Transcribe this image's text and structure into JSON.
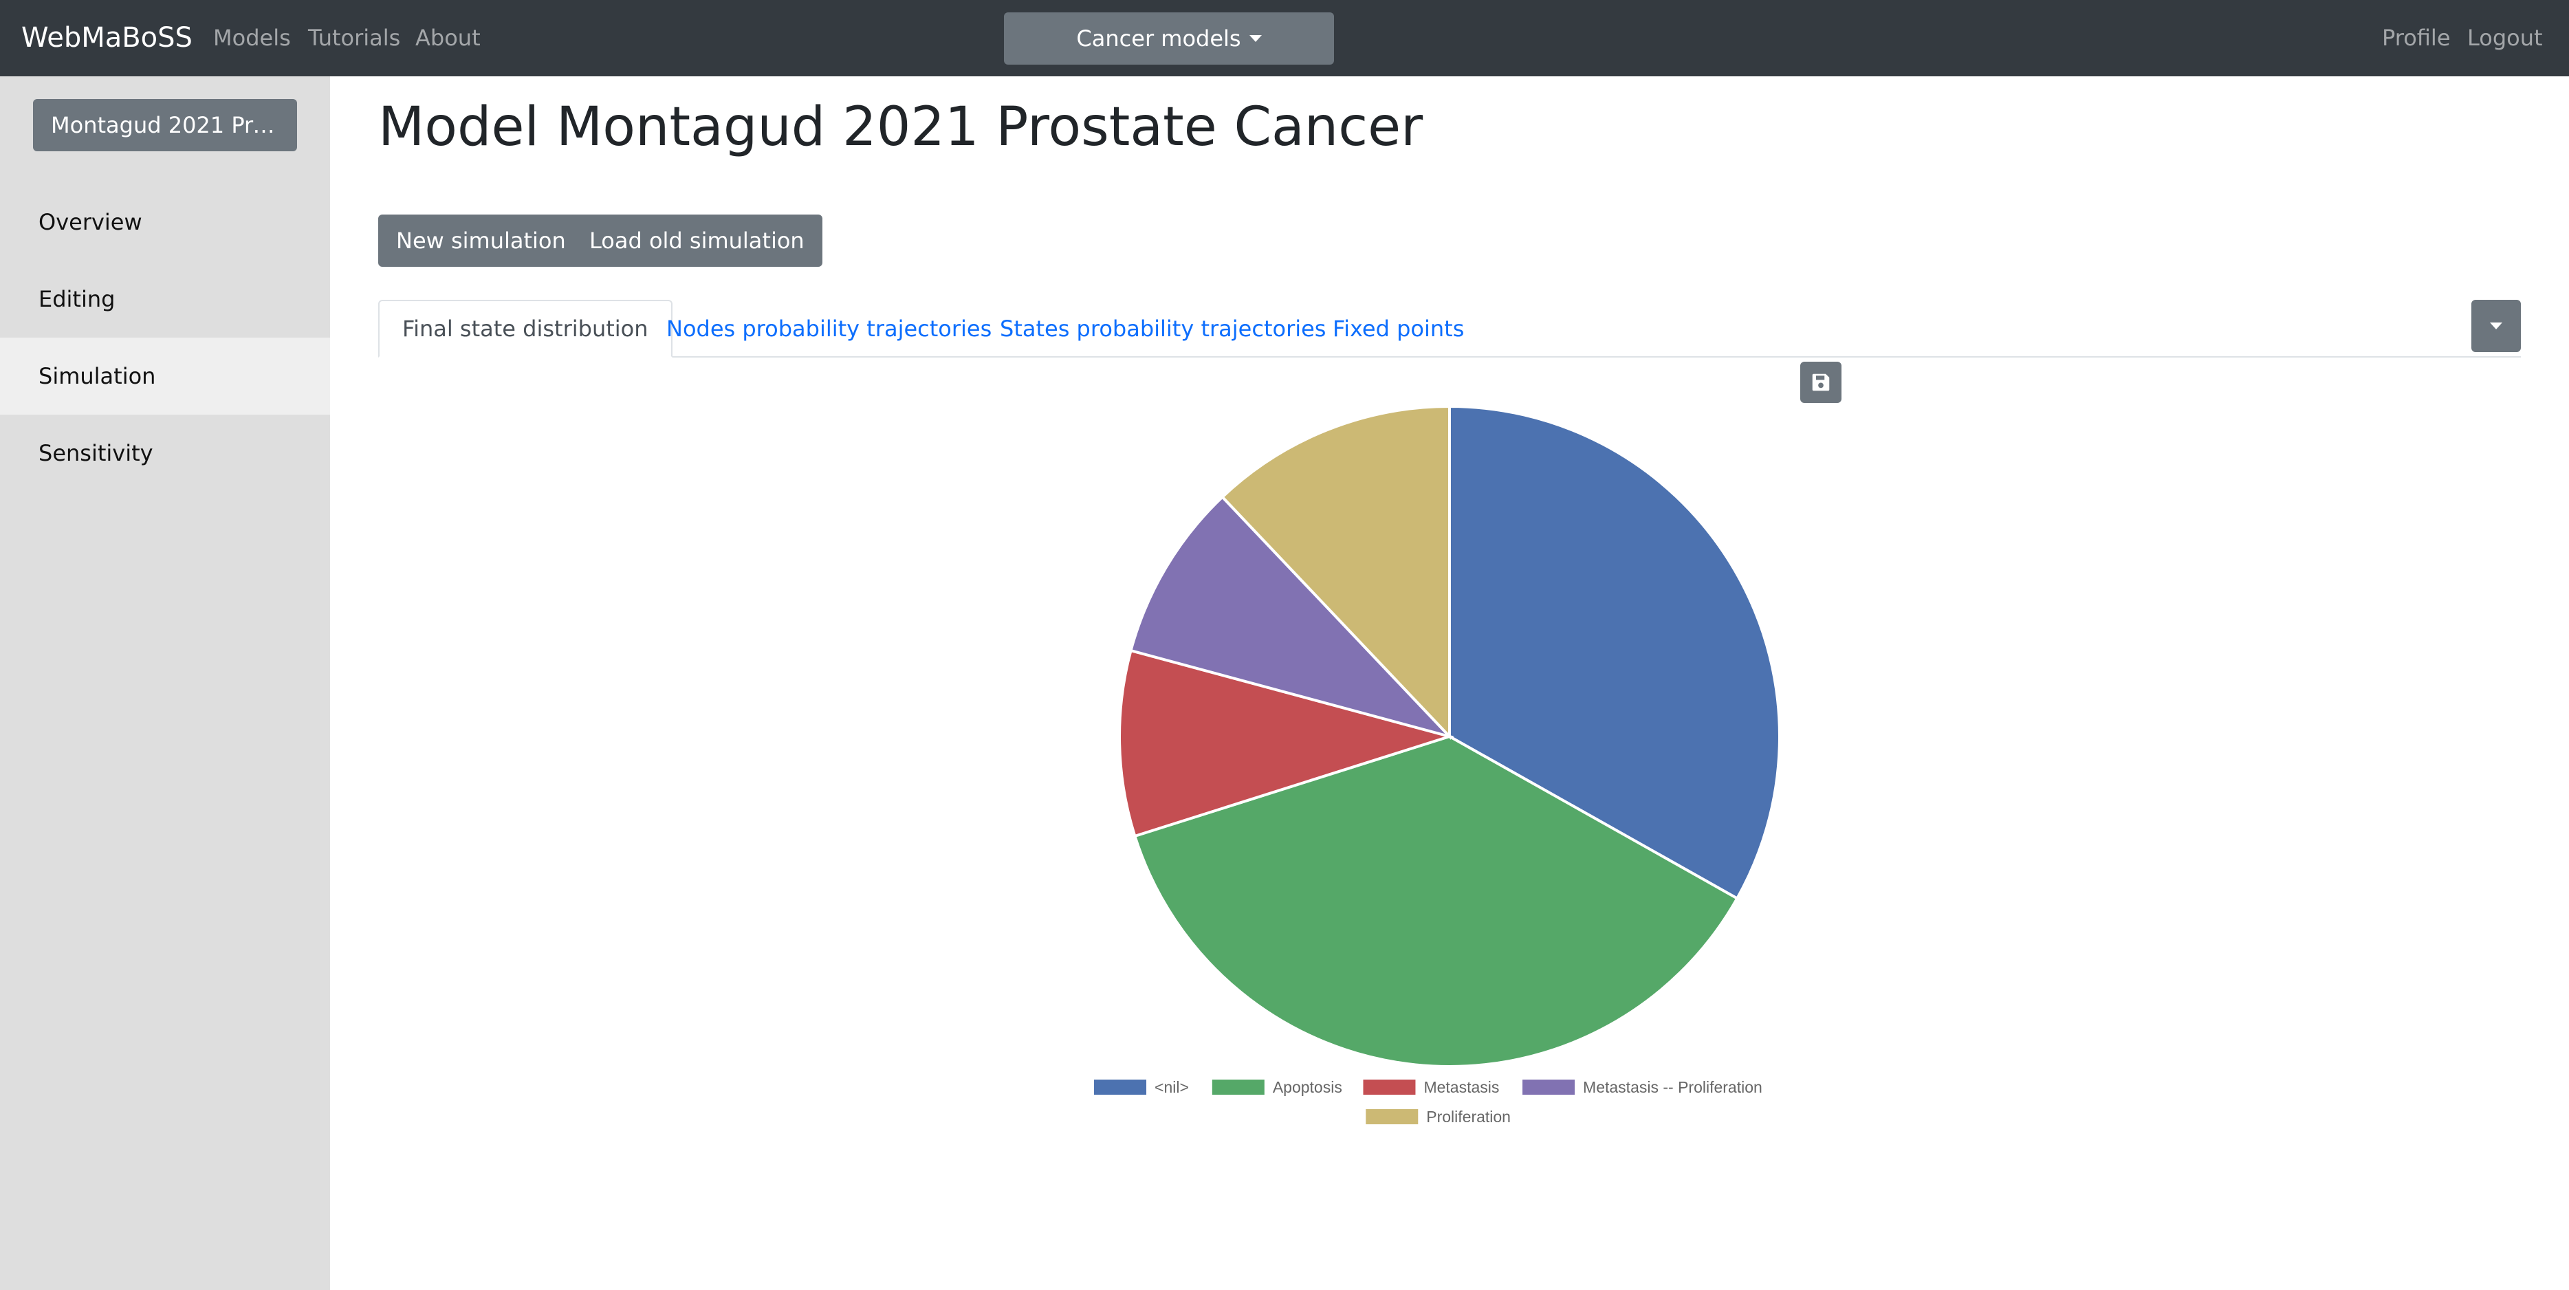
{
  "navbar": {
    "brand": "WebMaBoSS",
    "links": [
      "Models",
      "Tutorials",
      "About"
    ],
    "dropdown_label": "Cancer models",
    "right_links": [
      "Profile",
      "Logout"
    ]
  },
  "sidebar": {
    "model_button": "Montagud 2021 Prostate Cancer",
    "items": [
      {
        "label": "Overview"
      },
      {
        "label": "Editing"
      },
      {
        "label": "Simulation",
        "active": true
      },
      {
        "label": "Sensitivity"
      }
    ]
  },
  "main": {
    "title": "Model Montagud 2021 Prostate Cancer",
    "buttons": {
      "new_simulation": "New simulation",
      "load_old_simulation": "Load old simulation"
    },
    "tabs": [
      {
        "label": "Final state distribution",
        "active": true
      },
      {
        "label": "Nodes probability trajectories"
      },
      {
        "label": "States probability trajectories"
      },
      {
        "label": "Fixed points"
      }
    ]
  },
  "icons": {
    "save": "save-icon",
    "dropdown": "caret-down-icon"
  },
  "chart_data": {
    "type": "pie",
    "categories": [
      "<nil>",
      "Apoptosis",
      "Metastasis",
      "Metastasis -- Proliferation",
      "Proliferation"
    ],
    "values": [
      0.3316,
      0.3696,
      0.0907,
      0.0873,
      0.1208
    ],
    "colors": [
      "#4c72b0",
      "#55a868",
      "#c44e52",
      "#8172b2",
      "#ccb974"
    ],
    "legend": "bottom"
  }
}
